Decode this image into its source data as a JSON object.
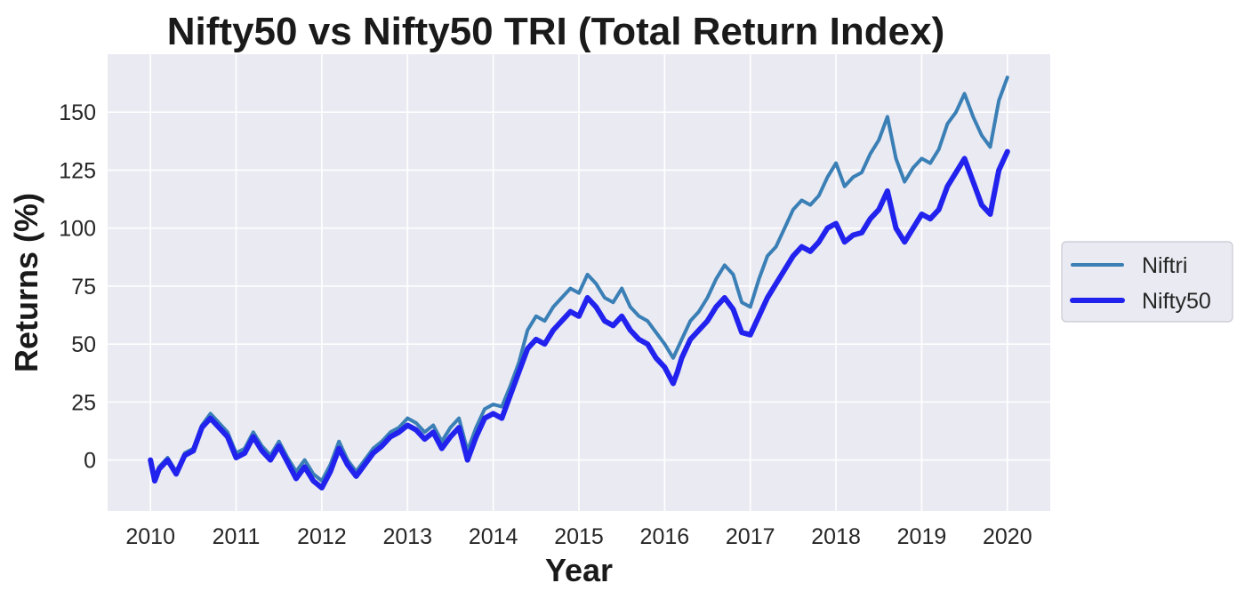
{
  "chart_data": {
    "type": "line",
    "title": "Nifty50 vs Nifty50 TRI (Total Return Index)",
    "xlabel": "Year",
    "ylabel": "Returns (%)",
    "xlim": [
      2009.5,
      2020.5
    ],
    "ylim": [
      -22,
      175
    ],
    "x_ticks": [
      2010,
      2011,
      2012,
      2013,
      2014,
      2015,
      2016,
      2017,
      2018,
      2019,
      2020
    ],
    "x_tick_labels": [
      "2010",
      "2011",
      "2012",
      "2013",
      "2014",
      "2015",
      "2016",
      "2017",
      "2018",
      "2019",
      "2020"
    ],
    "y_ticks": [
      0,
      25,
      50,
      75,
      100,
      125,
      150
    ],
    "y_tick_labels": [
      "0",
      "25",
      "50",
      "75",
      "100",
      "125",
      "150"
    ],
    "grid": true,
    "legend_position": "right",
    "series": [
      {
        "name": "Niftri",
        "color": "#3a7fb5",
        "x": [
          2010.0,
          2010.05,
          2010.1,
          2010.2,
          2010.3,
          2010.4,
          2010.5,
          2010.6,
          2010.7,
          2010.8,
          2010.9,
          2011.0,
          2011.1,
          2011.2,
          2011.3,
          2011.4,
          2011.5,
          2011.6,
          2011.7,
          2011.8,
          2011.9,
          2012.0,
          2012.1,
          2012.2,
          2012.3,
          2012.4,
          2012.5,
          2012.6,
          2012.7,
          2012.8,
          2012.9,
          2013.0,
          2013.1,
          2013.2,
          2013.3,
          2013.4,
          2013.5,
          2013.6,
          2013.7,
          2013.8,
          2013.9,
          2014.0,
          2014.1,
          2014.2,
          2014.3,
          2014.4,
          2014.5,
          2014.6,
          2014.7,
          2014.8,
          2014.9,
          2015.0,
          2015.1,
          2015.2,
          2015.3,
          2015.4,
          2015.5,
          2015.6,
          2015.7,
          2015.8,
          2015.9,
          2016.0,
          2016.1,
          2016.15,
          2016.2,
          2016.3,
          2016.4,
          2016.5,
          2016.6,
          2016.7,
          2016.8,
          2016.9,
          2017.0,
          2017.1,
          2017.2,
          2017.3,
          2017.4,
          2017.5,
          2017.6,
          2017.7,
          2017.8,
          2017.9,
          2018.0,
          2018.1,
          2018.2,
          2018.3,
          2018.4,
          2018.5,
          2018.6,
          2018.7,
          2018.8,
          2018.9,
          2019.0,
          2019.1,
          2019.2,
          2019.3,
          2019.4,
          2019.5,
          2019.6,
          2019.7,
          2019.8,
          2019.9,
          2020.0
        ],
        "values": [
          0,
          -8,
          -3,
          1,
          -5,
          3,
          5,
          15,
          20,
          16,
          12,
          3,
          5,
          12,
          6,
          2,
          8,
          1,
          -5,
          0,
          -6,
          -9,
          -2,
          8,
          0,
          -5,
          0,
          5,
          8,
          12,
          14,
          18,
          16,
          12,
          15,
          8,
          14,
          18,
          4,
          14,
          22,
          24,
          23,
          32,
          42,
          56,
          62,
          60,
          66,
          70,
          74,
          72,
          80,
          76,
          70,
          68,
          74,
          66,
          62,
          60,
          55,
          50,
          44,
          48,
          52,
          60,
          64,
          70,
          78,
          84,
          80,
          68,
          66,
          78,
          88,
          92,
          100,
          108,
          112,
          110,
          114,
          122,
          128,
          118,
          122,
          124,
          132,
          138,
          148,
          130,
          120,
          126,
          130,
          128,
          134,
          145,
          150,
          158,
          148,
          140,
          135,
          155,
          165
        ]
      },
      {
        "name": "Nifty50",
        "color": "#2222ee",
        "x": [
          2010.0,
          2010.05,
          2010.1,
          2010.2,
          2010.3,
          2010.4,
          2010.5,
          2010.6,
          2010.7,
          2010.8,
          2010.9,
          2011.0,
          2011.1,
          2011.2,
          2011.3,
          2011.4,
          2011.5,
          2011.6,
          2011.7,
          2011.8,
          2011.9,
          2012.0,
          2012.1,
          2012.2,
          2012.3,
          2012.4,
          2012.5,
          2012.6,
          2012.7,
          2012.8,
          2012.9,
          2013.0,
          2013.1,
          2013.2,
          2013.3,
          2013.4,
          2013.5,
          2013.6,
          2013.7,
          2013.8,
          2013.9,
          2014.0,
          2014.1,
          2014.2,
          2014.3,
          2014.4,
          2014.5,
          2014.6,
          2014.7,
          2014.8,
          2014.9,
          2015.0,
          2015.1,
          2015.2,
          2015.3,
          2015.4,
          2015.5,
          2015.6,
          2015.7,
          2015.8,
          2015.9,
          2016.0,
          2016.1,
          2016.15,
          2016.2,
          2016.3,
          2016.4,
          2016.5,
          2016.6,
          2016.7,
          2016.8,
          2016.9,
          2017.0,
          2017.1,
          2017.2,
          2017.3,
          2017.4,
          2017.5,
          2017.6,
          2017.7,
          2017.8,
          2017.9,
          2018.0,
          2018.1,
          2018.2,
          2018.3,
          2018.4,
          2018.5,
          2018.6,
          2018.7,
          2018.8,
          2018.9,
          2019.0,
          2019.1,
          2019.2,
          2019.3,
          2019.4,
          2019.5,
          2019.6,
          2019.7,
          2019.8,
          2019.9,
          2020.0
        ],
        "values": [
          0,
          -9,
          -4,
          0,
          -6,
          2,
          4,
          14,
          18,
          14,
          10,
          1,
          3,
          10,
          4,
          0,
          6,
          -1,
          -8,
          -3,
          -9,
          -12,
          -5,
          5,
          -2,
          -7,
          -2,
          3,
          6,
          10,
          12,
          15,
          13,
          9,
          12,
          5,
          10,
          14,
          0,
          10,
          18,
          20,
          18,
          28,
          38,
          48,
          52,
          50,
          56,
          60,
          64,
          62,
          70,
          66,
          60,
          58,
          62,
          56,
          52,
          50,
          44,
          40,
          33,
          38,
          44,
          52,
          56,
          60,
          66,
          70,
          65,
          55,
          54,
          62,
          70,
          76,
          82,
          88,
          92,
          90,
          94,
          100,
          102,
          94,
          97,
          98,
          104,
          108,
          116,
          100,
          94,
          100,
          106,
          104,
          108,
          118,
          124,
          130,
          120,
          110,
          106,
          125,
          133
        ]
      }
    ]
  }
}
